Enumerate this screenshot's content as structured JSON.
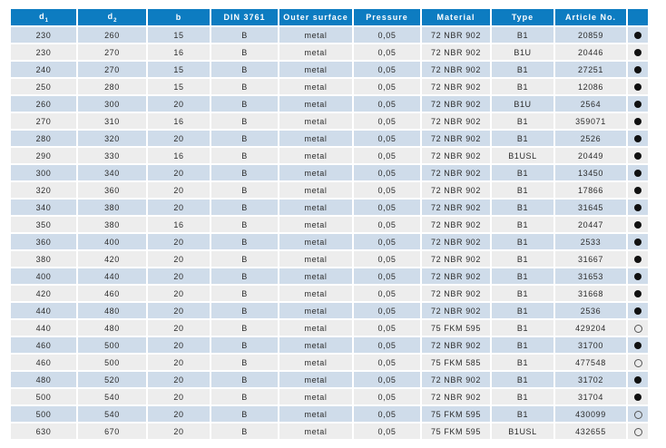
{
  "colors": {
    "header_bg": "#0d7cc1",
    "header_text": "#ffffff",
    "row_stripe_blue": "#cfdcea",
    "row_stripe_gray": "#ededed",
    "body_text": "#2b2b2b",
    "marker_color": "#111111"
  },
  "table": {
    "columns": [
      {
        "key": "d1",
        "label": "d",
        "sub": "1",
        "width": 72
      },
      {
        "key": "d2",
        "label": "d",
        "sub": "2",
        "width": 75
      },
      {
        "key": "b",
        "label": "b",
        "sub": "",
        "width": 68
      },
      {
        "key": "din",
        "label": "DIN 3761",
        "sub": "",
        "width": 73
      },
      {
        "key": "outer",
        "label": "Outer surface",
        "sub": "",
        "width": 80
      },
      {
        "key": "pressure",
        "label": "Pressure",
        "sub": "",
        "width": 73
      },
      {
        "key": "material",
        "label": "Material",
        "sub": "",
        "width": 75
      },
      {
        "key": "type",
        "label": "Type",
        "sub": "",
        "width": 68
      },
      {
        "key": "article",
        "label": "Article No.",
        "sub": "",
        "width": 78
      },
      {
        "key": "marker",
        "label": "",
        "sub": "",
        "width": 22
      }
    ],
    "rows": [
      {
        "d1": "230",
        "d2": "260",
        "b": "15",
        "din": "B",
        "outer": "metal",
        "pressure": "0,05",
        "material": "72 NBR 902",
        "type": "B1",
        "article": "20859",
        "marker": "filled"
      },
      {
        "d1": "230",
        "d2": "270",
        "b": "16",
        "din": "B",
        "outer": "metal",
        "pressure": "0,05",
        "material": "72 NBR 902",
        "type": "B1U",
        "article": "20446",
        "marker": "filled"
      },
      {
        "d1": "240",
        "d2": "270",
        "b": "15",
        "din": "B",
        "outer": "metal",
        "pressure": "0,05",
        "material": "72 NBR 902",
        "type": "B1",
        "article": "27251",
        "marker": "filled"
      },
      {
        "d1": "250",
        "d2": "280",
        "b": "15",
        "din": "B",
        "outer": "metal",
        "pressure": "0,05",
        "material": "72 NBR 902",
        "type": "B1",
        "article": "12086",
        "marker": "filled"
      },
      {
        "d1": "260",
        "d2": "300",
        "b": "20",
        "din": "B",
        "outer": "metal",
        "pressure": "0,05",
        "material": "72 NBR 902",
        "type": "B1U",
        "article": "2564",
        "marker": "filled"
      },
      {
        "d1": "270",
        "d2": "310",
        "b": "16",
        "din": "B",
        "outer": "metal",
        "pressure": "0,05",
        "material": "72 NBR 902",
        "type": "B1",
        "article": "359071",
        "marker": "filled"
      },
      {
        "d1": "280",
        "d2": "320",
        "b": "20",
        "din": "B",
        "outer": "metal",
        "pressure": "0,05",
        "material": "72 NBR 902",
        "type": "B1",
        "article": "2526",
        "marker": "filled"
      },
      {
        "d1": "290",
        "d2": "330",
        "b": "16",
        "din": "B",
        "outer": "metal",
        "pressure": "0,05",
        "material": "72 NBR 902",
        "type": "B1USL",
        "article": "20449",
        "marker": "filled"
      },
      {
        "d1": "300",
        "d2": "340",
        "b": "20",
        "din": "B",
        "outer": "metal",
        "pressure": "0,05",
        "material": "72 NBR 902",
        "type": "B1",
        "article": "13450",
        "marker": "filled"
      },
      {
        "d1": "320",
        "d2": "360",
        "b": "20",
        "din": "B",
        "outer": "metal",
        "pressure": "0,05",
        "material": "72 NBR 902",
        "type": "B1",
        "article": "17866",
        "marker": "filled"
      },
      {
        "d1": "340",
        "d2": "380",
        "b": "20",
        "din": "B",
        "outer": "metal",
        "pressure": "0,05",
        "material": "72 NBR 902",
        "type": "B1",
        "article": "31645",
        "marker": "filled"
      },
      {
        "d1": "350",
        "d2": "380",
        "b": "16",
        "din": "B",
        "outer": "metal",
        "pressure": "0,05",
        "material": "72 NBR 902",
        "type": "B1",
        "article": "20447",
        "marker": "filled"
      },
      {
        "d1": "360",
        "d2": "400",
        "b": "20",
        "din": "B",
        "outer": "metal",
        "pressure": "0,05",
        "material": "72 NBR 902",
        "type": "B1",
        "article": "2533",
        "marker": "filled"
      },
      {
        "d1": "380",
        "d2": "420",
        "b": "20",
        "din": "B",
        "outer": "metal",
        "pressure": "0,05",
        "material": "72 NBR 902",
        "type": "B1",
        "article": "31667",
        "marker": "filled"
      },
      {
        "d1": "400",
        "d2": "440",
        "b": "20",
        "din": "B",
        "outer": "metal",
        "pressure": "0,05",
        "material": "72 NBR 902",
        "type": "B1",
        "article": "31653",
        "marker": "filled"
      },
      {
        "d1": "420",
        "d2": "460",
        "b": "20",
        "din": "B",
        "outer": "metal",
        "pressure": "0,05",
        "material": "72 NBR 902",
        "type": "B1",
        "article": "31668",
        "marker": "filled"
      },
      {
        "d1": "440",
        "d2": "480",
        "b": "20",
        "din": "B",
        "outer": "metal",
        "pressure": "0,05",
        "material": "72 NBR 902",
        "type": "B1",
        "article": "2536",
        "marker": "filled"
      },
      {
        "d1": "440",
        "d2": "480",
        "b": "20",
        "din": "B",
        "outer": "metal",
        "pressure": "0,05",
        "material": "75 FKM 595",
        "type": "B1",
        "article": "429204",
        "marker": "hollow"
      },
      {
        "d1": "460",
        "d2": "500",
        "b": "20",
        "din": "B",
        "outer": "metal",
        "pressure": "0,05",
        "material": "72 NBR 902",
        "type": "B1",
        "article": "31700",
        "marker": "filled"
      },
      {
        "d1": "460",
        "d2": "500",
        "b": "20",
        "din": "B",
        "outer": "metal",
        "pressure": "0,05",
        "material": "75 FKM 585",
        "type": "B1",
        "article": "477548",
        "marker": "hollow"
      },
      {
        "d1": "480",
        "d2": "520",
        "b": "20",
        "din": "B",
        "outer": "metal",
        "pressure": "0,05",
        "material": "72 NBR 902",
        "type": "B1",
        "article": "31702",
        "marker": "filled"
      },
      {
        "d1": "500",
        "d2": "540",
        "b": "20",
        "din": "B",
        "outer": "metal",
        "pressure": "0,05",
        "material": "72 NBR 902",
        "type": "B1",
        "article": "31704",
        "marker": "filled"
      },
      {
        "d1": "500",
        "d2": "540",
        "b": "20",
        "din": "B",
        "outer": "metal",
        "pressure": "0,05",
        "material": "75 FKM 595",
        "type": "B1",
        "article": "430099",
        "marker": "hollow"
      },
      {
        "d1": "630",
        "d2": "670",
        "b": "20",
        "din": "B",
        "outer": "metal",
        "pressure": "0,05",
        "material": "75 FKM 595",
        "type": "B1USL",
        "article": "432655",
        "marker": "hollow"
      }
    ]
  }
}
